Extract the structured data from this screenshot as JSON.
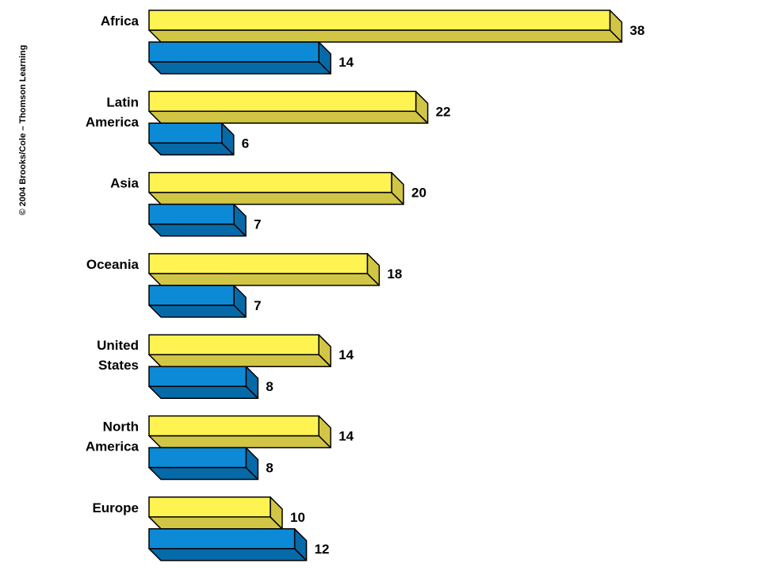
{
  "copyright": "© 2004 Brooks/Cole – Thomson Learning",
  "chart_data": {
    "type": "bar",
    "orientation": "horizontal",
    "style": "3d",
    "categories": [
      [
        "Africa"
      ],
      [
        "Latin",
        "America"
      ],
      [
        "Asia"
      ],
      [
        "Oceania"
      ],
      [
        "United",
        "States"
      ],
      [
        "North",
        "America"
      ],
      [
        "Europe"
      ]
    ],
    "series": [
      {
        "values": [
          38,
          22,
          20,
          18,
          14,
          14,
          10
        ],
        "color": "#fff352",
        "side": "#d1c546"
      },
      {
        "values": [
          14,
          6,
          7,
          7,
          8,
          8,
          12
        ],
        "color": "#0d8ad6",
        "side": "#066aa8"
      }
    ],
    "grid": false,
    "legend": "none"
  }
}
